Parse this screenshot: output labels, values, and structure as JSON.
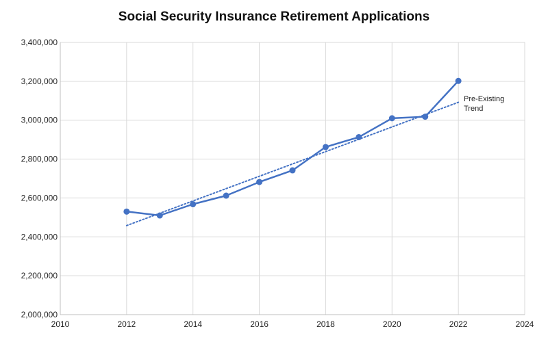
{
  "chart_data": {
    "type": "line",
    "title": "Social Security Insurance Retirement Applications",
    "xlabel": "",
    "ylabel": "",
    "xlim": [
      2010,
      2024
    ],
    "ylim": [
      2000000,
      3400000
    ],
    "x_ticks": [
      2010,
      2012,
      2014,
      2016,
      2018,
      2020,
      2022,
      2024
    ],
    "y_ticks": [
      2000000,
      2200000,
      2400000,
      2600000,
      2800000,
      3000000,
      3200000,
      3400000
    ],
    "x_tick_labels": [
      "2010",
      "2012",
      "2014",
      "2016",
      "2018",
      "2020",
      "2022",
      "2024"
    ],
    "y_tick_labels": [
      "2,000,000",
      "2,200,000",
      "2,400,000",
      "2,600,000",
      "2,800,000",
      "3,000,000",
      "3,200,000",
      "3,400,000"
    ],
    "grid": true,
    "series": [
      {
        "style": "solid-with-markers",
        "color": "#4472C4",
        "x": [
          2012,
          2013,
          2014,
          2015,
          2016,
          2017,
          2018,
          2019,
          2020,
          2021,
          2022
        ],
        "y": [
          2530000,
          2510000,
          2568000,
          2612000,
          2682000,
          2742000,
          2862000,
          2913000,
          3010000,
          3018000,
          3202000
        ]
      },
      {
        "style": "dotted-trendline",
        "color": "#4472C4",
        "x": [
          2012,
          2022
        ],
        "y": [
          2458000,
          3092000
        ]
      }
    ],
    "annotations": [
      {
        "lines": [
          "Pre-Existing",
          "Trend"
        ]
      }
    ]
  }
}
